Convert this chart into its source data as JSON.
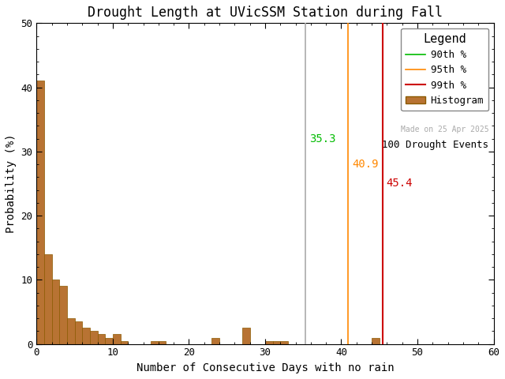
{
  "title": "Drought Length at UVicSSM Station during Fall",
  "xlabel": "Number of Consecutive Days with no rain",
  "ylabel": "Probability (%)",
  "xlim": [
    0,
    60
  ],
  "ylim": [
    0,
    50
  ],
  "xticks": [
    0,
    10,
    20,
    30,
    40,
    50,
    60
  ],
  "yticks": [
    0,
    10,
    20,
    30,
    40,
    50
  ],
  "bar_color": "#b87333",
  "bar_edgecolor": "#8B5A00",
  "bin_edges": [
    0,
    1,
    2,
    3,
    4,
    5,
    6,
    7,
    8,
    9,
    10,
    11,
    12,
    13,
    14,
    15,
    16,
    17,
    18,
    19,
    20,
    21,
    22,
    23,
    24,
    25,
    26,
    27,
    28,
    29,
    30,
    31,
    32,
    33,
    34,
    35,
    36,
    37,
    38,
    39,
    40,
    41,
    42,
    43,
    44,
    45,
    46,
    47,
    48,
    49,
    50,
    51,
    52,
    53,
    54,
    55,
    56,
    57,
    58,
    59,
    60
  ],
  "bar_heights": [
    41.0,
    14.0,
    10.0,
    9.0,
    4.0,
    3.5,
    2.5,
    2.0,
    1.5,
    1.0,
    1.5,
    0.5,
    0.0,
    0.0,
    0.0,
    0.5,
    0.5,
    0.0,
    0.0,
    0.0,
    0.0,
    0.0,
    0.0,
    1.0,
    0.0,
    0.0,
    0.0,
    2.5,
    0.0,
    0.0,
    0.5,
    0.5,
    0.5,
    0.0,
    0.0,
    0.0,
    0.0,
    0.0,
    0.0,
    0.0,
    0.0,
    0.0,
    0.0,
    0.0,
    1.0,
    0.0,
    0.0,
    0.0,
    0.0,
    0.0,
    0.0,
    0.0,
    0.0,
    0.0,
    0.0,
    0.0,
    0.0,
    0.0,
    0.0,
    0.0
  ],
  "pct90": 35.3,
  "pct95": 40.9,
  "pct99": 45.4,
  "pct90_color": "#aaaaaa",
  "pct95_color": "#ff8800",
  "pct99_color": "#cc0000",
  "pct90_legend_color": "#00bb00",
  "pct90_label": "90th %",
  "pct95_label": "95th %",
  "pct99_label": "99th %",
  "hist_label": "Histogram",
  "events_label": "100 Drought Events",
  "watermark": "Made on 25 Apr 2025",
  "watermark_color": "#aaaaaa",
  "legend_title": "Legend",
  "background_color": "#ffffff",
  "title_fontsize": 12,
  "axis_fontsize": 10,
  "tick_fontsize": 9,
  "annotation_fontsize": 10,
  "pct90_ann_color": "#00bb00",
  "pct95_ann_color": "#ff8800",
  "pct99_ann_color": "#cc0000"
}
